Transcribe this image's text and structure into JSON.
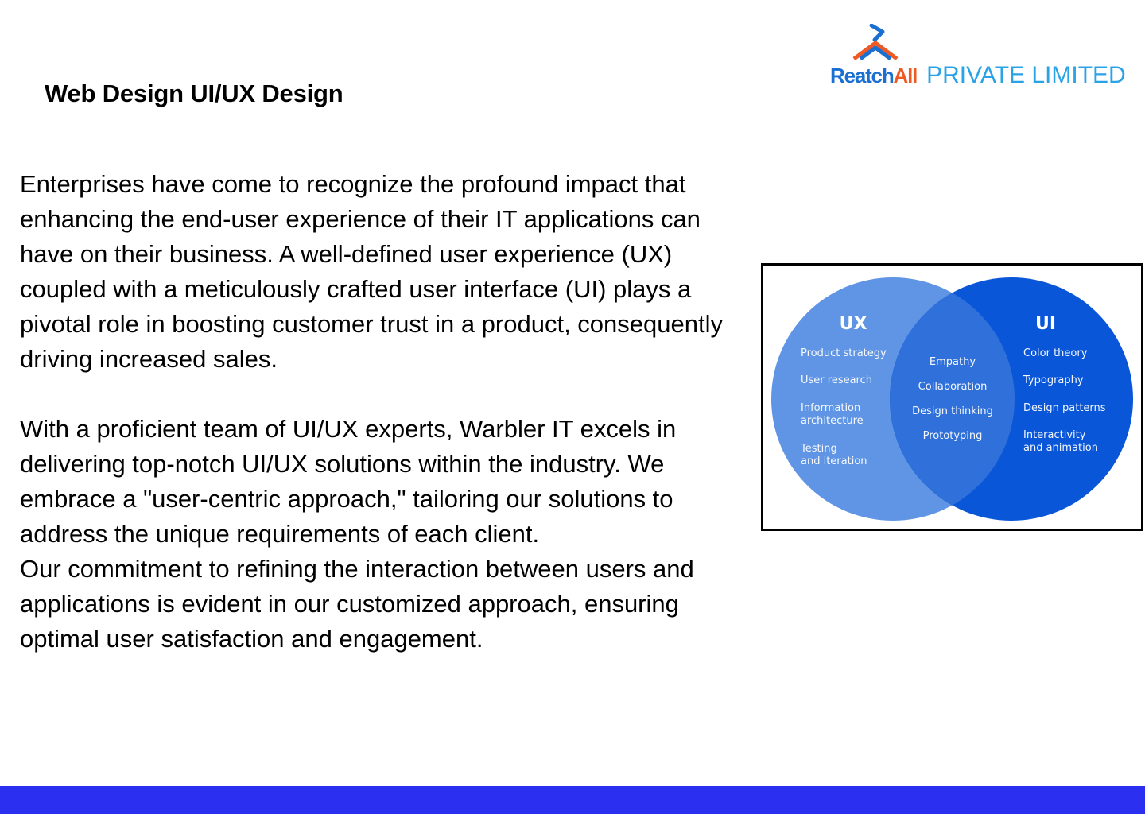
{
  "header": {
    "title": "Web Design UI/UX Design"
  },
  "logo": {
    "brand_part1": "Reatch",
    "brand_part2": "All",
    "tagline": "PRIVATE LIMITED",
    "colors": {
      "brand_blue": "#1b6fd0",
      "brand_orange": "#ef5a24",
      "tagline_blue": "#2aa3e6"
    }
  },
  "body": {
    "paragraph1": "Enterprises have come to recognize the profound impact that enhancing the end-user experience of their IT applications can have on their business. A well-defined user experience (UX) coupled with a meticulously crafted user interface (UI) plays a pivotal role in boosting customer trust in a product, consequently driving increased sales.",
    "paragraph2": "With a proficient team of UI/UX experts, Warbler IT excels in delivering top-notch UI/UX solutions within the industry. We embrace a \"user-centric approach,\" tailoring our solutions to address the unique requirements of each client.",
    "paragraph3": "Our commitment to refining the interaction between users and applications is evident in our customized approach, ensuring optimal user satisfaction and engagement."
  },
  "venn": {
    "left": {
      "title": "UX",
      "items": [
        "Product strategy",
        "User research",
        "Information architecture",
        "Testing and iteration"
      ],
      "color": "#5f95e4"
    },
    "overlap": {
      "items": [
        "Empathy",
        "Collaboration",
        "Design thinking",
        "Prototyping"
      ],
      "color": "#2f70da"
    },
    "right": {
      "title": "UI",
      "items": [
        "Color theory",
        "Typography",
        "Design patterns",
        "Interactivity and animation"
      ],
      "color": "#0a56d8"
    }
  },
  "footer": {
    "bar_color": "#2a2ff0"
  }
}
